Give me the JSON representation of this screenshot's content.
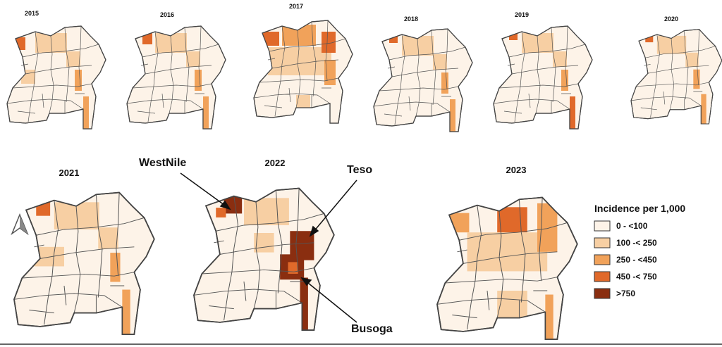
{
  "maps": [
    {
      "year": "2015"
    },
    {
      "year": "2016"
    },
    {
      "year": "2017"
    },
    {
      "year": "2018"
    },
    {
      "year": "2019"
    },
    {
      "year": "2020"
    },
    {
      "year": "2021"
    },
    {
      "year": "2022"
    },
    {
      "year": "2023"
    }
  ],
  "annotations": [
    {
      "label": "WestNile"
    },
    {
      "label": "Teso"
    },
    {
      "label": "Busoga"
    }
  ],
  "legend": {
    "title": "Incidence per 1,000",
    "classes": [
      {
        "label": "0 - <100",
        "color": "#fdf3e8"
      },
      {
        "label": "100 -< 250",
        "color": "#f7cfa3"
      },
      {
        "label": "250 - <450",
        "color": "#f1a25a"
      },
      {
        "label": "450 -< 750",
        "color": "#e0692a"
      },
      {
        "label": ">750",
        "color": "#8a2e10"
      }
    ]
  }
}
